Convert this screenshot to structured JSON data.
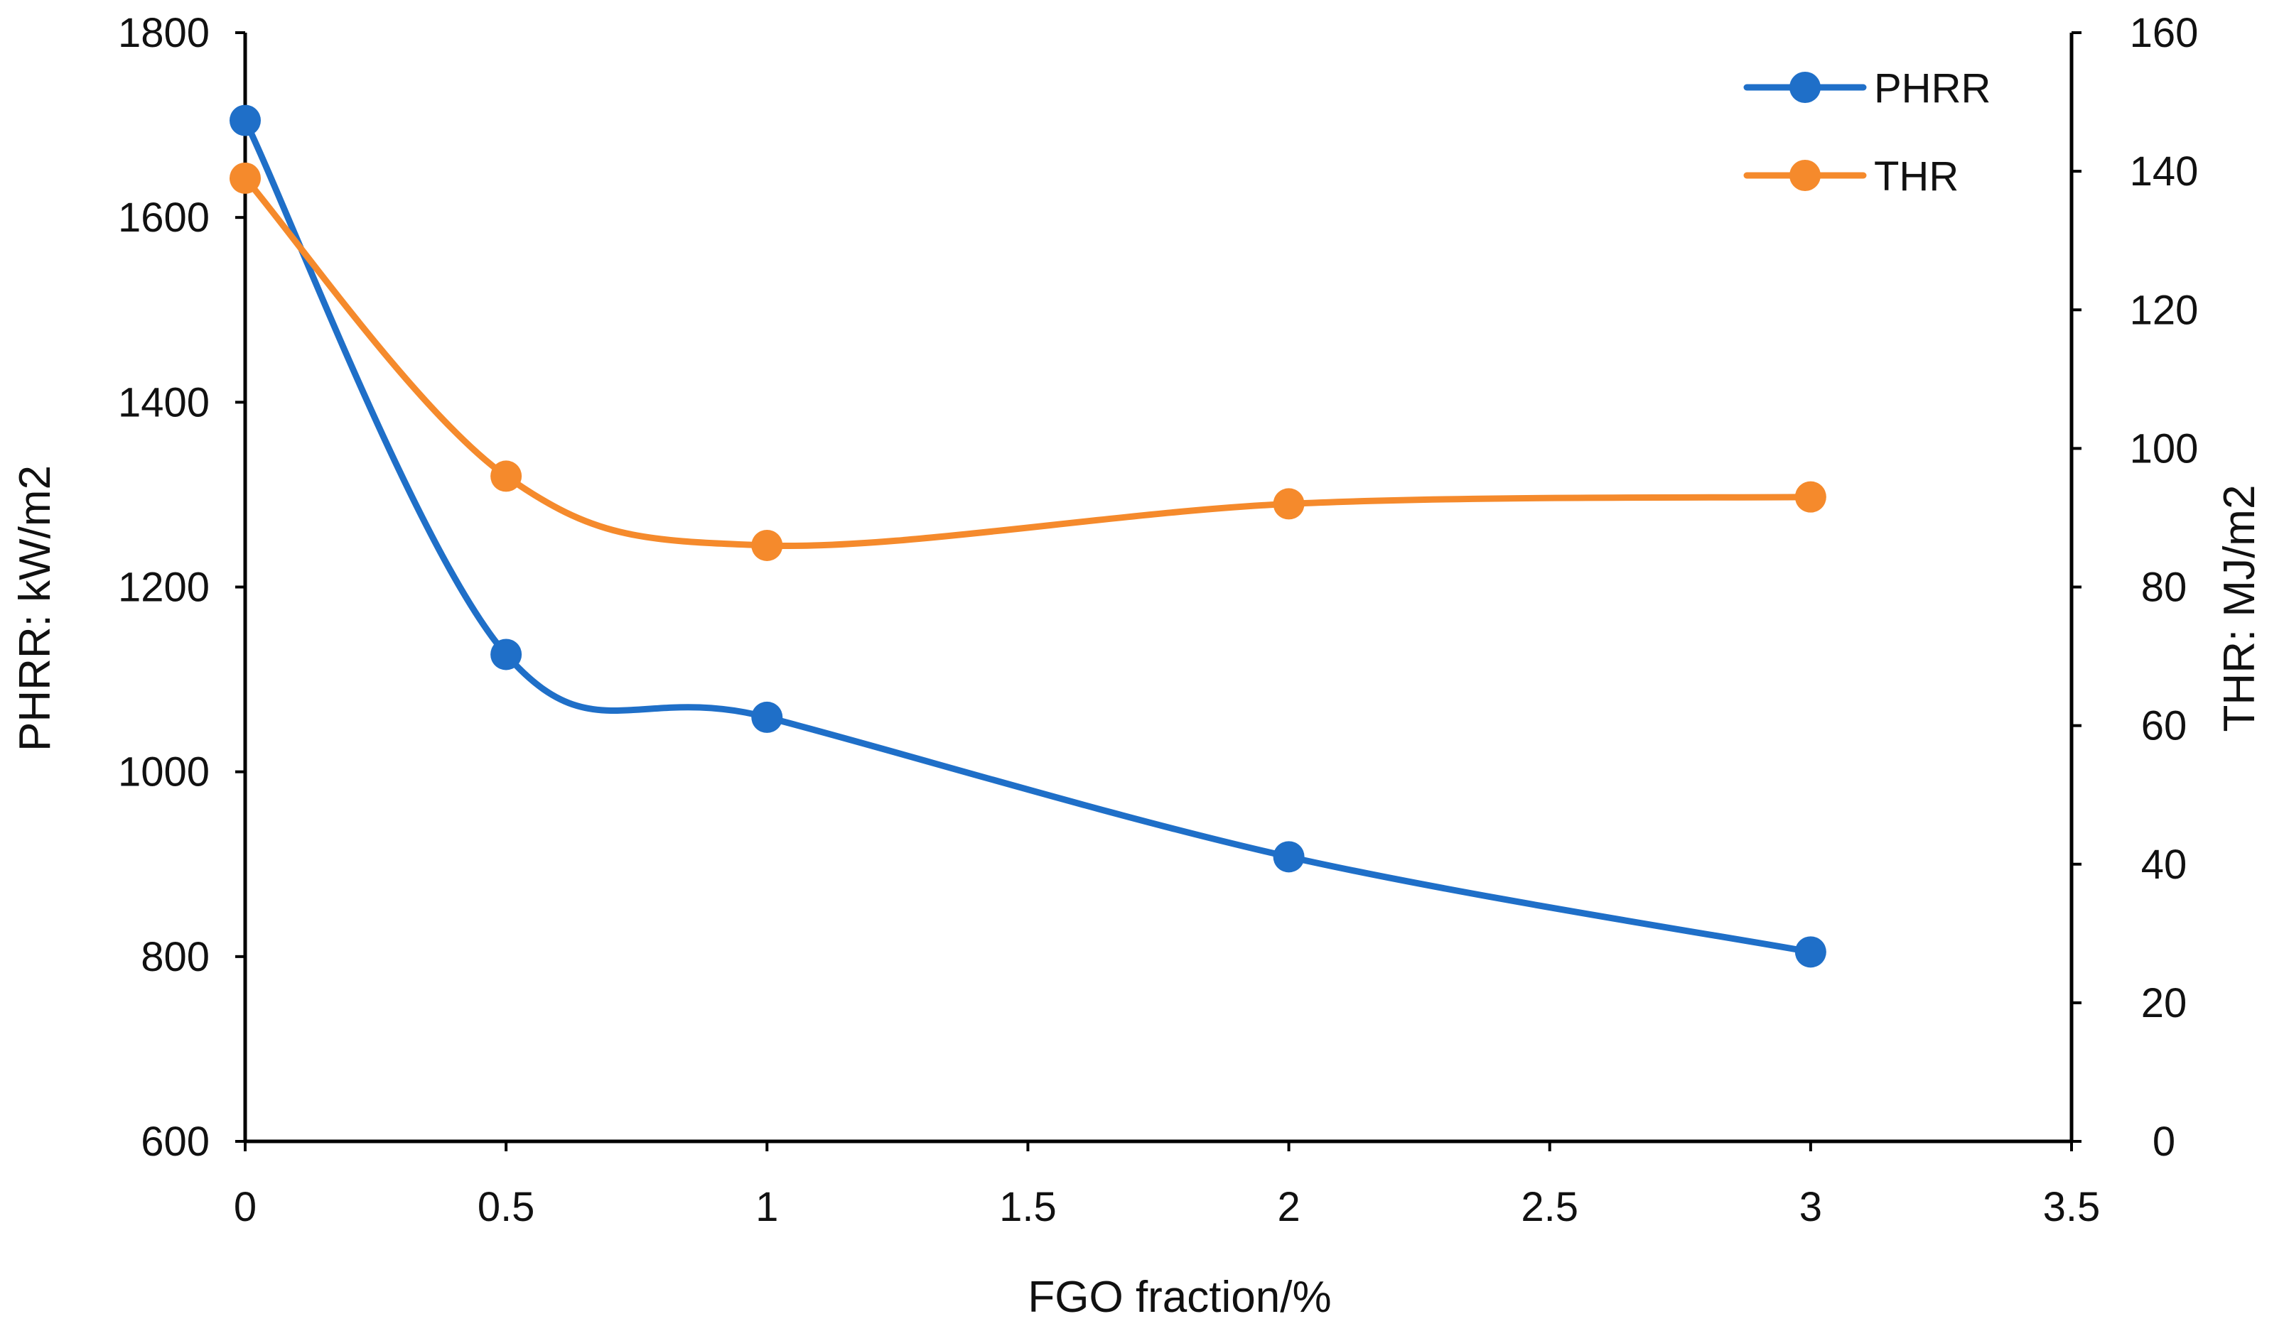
{
  "chart_data": {
    "type": "line",
    "smooth": true,
    "markers": true,
    "grid": false,
    "legend": "top-right",
    "x": [
      0,
      0.5,
      1,
      2,
      3
    ],
    "xlim": [
      0,
      3.5
    ],
    "xticks": [
      "0",
      "0.5",
      "1",
      "1.5",
      "2",
      "2.5",
      "3",
      "3.5"
    ],
    "xtick_values": [
      0,
      0.5,
      1,
      1.5,
      2,
      2.5,
      3,
      3.5
    ],
    "xlabel": "FGO fraction/%",
    "ylabel": "PHRR: kW/m2",
    "ylim": [
      600,
      1800
    ],
    "yticks": [
      "600",
      "800",
      "1000",
      "1200",
      "1400",
      "1600",
      "1800"
    ],
    "ytick_values": [
      600,
      800,
      1000,
      1200,
      1400,
      1600,
      1800
    ],
    "y2label": "THR: MJ/m2",
    "y2lim": [
      0,
      160
    ],
    "y2ticks": [
      "0",
      "20",
      "40",
      "60",
      "80",
      "100",
      "120",
      "140",
      "160"
    ],
    "y2tick_values": [
      0,
      20,
      40,
      60,
      80,
      100,
      120,
      140,
      160
    ],
    "series": [
      {
        "name": "PHRR",
        "axis": "left",
        "color": "#1f6fc8",
        "values": [
          1705,
          1127,
          1059,
          908,
          805
        ]
      },
      {
        "name": "THR",
        "axis": "right",
        "color": "#f58a2c",
        "values": [
          139,
          96,
          86,
          92,
          93
        ]
      }
    ]
  }
}
